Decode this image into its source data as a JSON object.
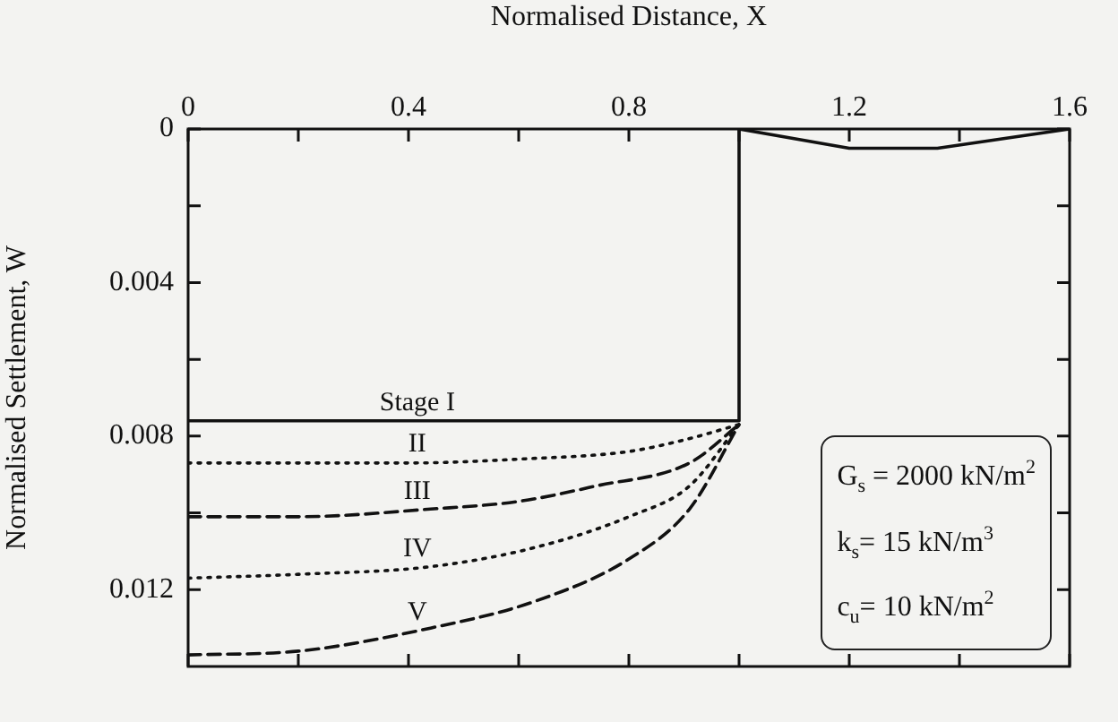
{
  "chart_data": {
    "type": "line",
    "xlabel": "Normalised Distance, X",
    "ylabel": "Normalised Settlement, W",
    "xlim": [
      0,
      1.6
    ],
    "xticks": [
      0,
      {
        "value": 0.2,
        "label": null
      },
      0.4,
      {
        "value": 0.6,
        "label": null
      },
      0.8,
      {
        "value": 1.0,
        "label": null
      },
      1.2,
      {
        "value": 1.4,
        "label": null
      },
      1.6
    ],
    "ylim": [
      0.014,
      0
    ],
    "yticks": [
      0,
      {
        "value": 0.002,
        "label": null
      },
      0.004,
      {
        "value": 0.006,
        "label": null
      },
      0.008,
      {
        "value": 0.01,
        "label": null
      },
      0.012
    ],
    "grid": false,
    "legend": false,
    "marker": "none",
    "series": [
      {
        "name": "Stage I",
        "color": "#111111",
        "line_style": "solid",
        "x": [
          0,
          1.0,
          1.0,
          1.2,
          1.36,
          1.6
        ],
        "values": [
          0.0076,
          0.0076,
          0,
          0.0005,
          0.0005,
          0
        ]
      },
      {
        "name": "II",
        "color": "#111111",
        "line_style": "dotted",
        "x": [
          0,
          0.4,
          0.6,
          0.8,
          0.9,
          1.0
        ],
        "values": [
          0.0087,
          0.0087,
          0.0086,
          0.0084,
          0.0081,
          0.0077
        ]
      },
      {
        "name": "III",
        "color": "#111111",
        "line_style": "dashed",
        "x": [
          0,
          0.2,
          0.44,
          0.6,
          0.74,
          0.91,
          1.0
        ],
        "values": [
          0.0101,
          0.0101,
          0.0099,
          0.0097,
          0.0093,
          0.0087,
          0.0077
        ]
      },
      {
        "name": "IV",
        "color": "#111111",
        "line_style": "dotted",
        "x": [
          0,
          0.2,
          0.44,
          0.63,
          0.8,
          0.91,
          1.0
        ],
        "values": [
          0.0117,
          0.0116,
          0.0114,
          0.0109,
          0.0101,
          0.0093,
          0.0077
        ]
      },
      {
        "name": "V",
        "color": "#111111",
        "line_style": "dashed",
        "x": [
          0,
          0.2,
          0.44,
          0.63,
          0.8,
          0.91,
          1.0
        ],
        "values": [
          0.0137,
          0.0136,
          0.013,
          0.0123,
          0.0112,
          0.0099,
          0.0077
        ]
      }
    ],
    "annotations": [
      "G$_{s}$ = 2000 kN/m$^{2}$",
      "k$_{s}$= 15 kN/m$^{3}$",
      "c$_{u}$= 10 kN/m$^{2}$"
    ]
  }
}
